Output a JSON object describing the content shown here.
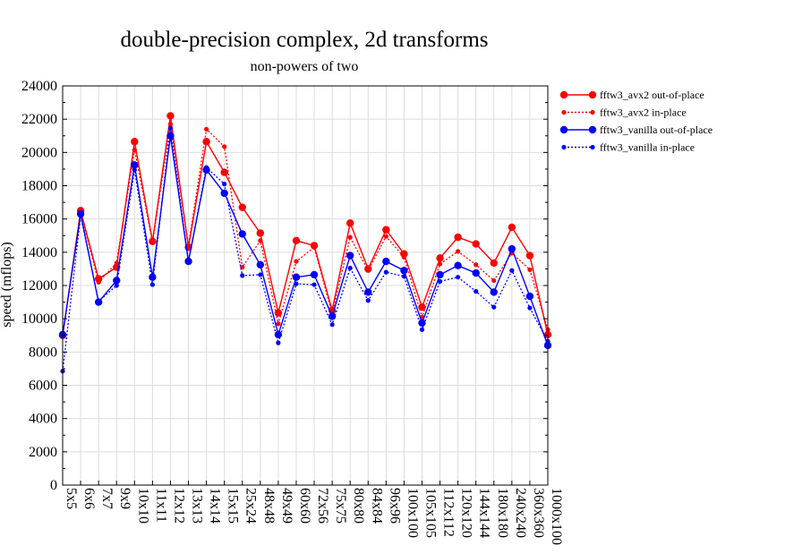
{
  "chart_data": {
    "type": "line",
    "title": "double-precision complex, 2d transforms",
    "subtitle": "non-powers of two",
    "xlabel": "",
    "ylabel": "speed (mflops)",
    "ylim": [
      0,
      24000
    ],
    "yticks": [
      0,
      2000,
      4000,
      6000,
      8000,
      10000,
      12000,
      14000,
      16000,
      18000,
      20000,
      22000,
      24000
    ],
    "grid": true,
    "legend_position": "top-right",
    "categories": [
      "5x5",
      "6x6",
      "7x7",
      "9x9",
      "10x10",
      "11x11",
      "12x12",
      "13x13",
      "14x14",
      "15x15",
      "25x24",
      "48x48",
      "49x49",
      "60x60",
      "72x56",
      "75x75",
      "80x80",
      "84x84",
      "96x96",
      "100x100",
      "105x105",
      "112x112",
      "120x120",
      "144x144",
      "180x180",
      "240x240",
      "360x360",
      "1000x100"
    ],
    "series": [
      {
        "name": "fftw3_avx2 out-of-place",
        "color": "#ff0000",
        "style": "solid",
        "marker": "large",
        "values": [
          9000,
          16500,
          12400,
          13100,
          20650,
          14650,
          22200,
          14300,
          20650,
          18800,
          16700,
          15150,
          10350,
          14700,
          14400,
          10500,
          15750,
          13000,
          15350,
          13900,
          10700,
          13650,
          14900,
          14500,
          13350,
          15500,
          13800,
          9050
        ]
      },
      {
        "name": "fftw3_avx2 in-place",
        "color": "#ff0000",
        "style": "dotted",
        "marker": "small",
        "values": [
          8950,
          16400,
          12200,
          13350,
          20150,
          14600,
          21700,
          14400,
          21400,
          20350,
          13100,
          14700,
          9700,
          13450,
          14300,
          10300,
          14900,
          12900,
          14950,
          13700,
          10100,
          13300,
          14050,
          13250,
          12300,
          13950,
          12950,
          9350
        ]
      },
      {
        "name": "fftw3_vanilla out-of-place",
        "color": "#0000ff",
        "style": "solid",
        "marker": "large",
        "values": [
          9050,
          16300,
          11000,
          12300,
          19250,
          12500,
          21000,
          13450,
          18950,
          17550,
          15100,
          13250,
          9050,
          12500,
          12650,
          10150,
          13800,
          11600,
          13450,
          12900,
          9750,
          12650,
          13200,
          12750,
          11600,
          14200,
          11350,
          8400
        ]
      },
      {
        "name": "fftw3_vanilla in-place",
        "color": "#0000ff",
        "style": "dotted",
        "marker": "small",
        "values": [
          6850,
          16200,
          11050,
          12000,
          18950,
          12050,
          21450,
          13450,
          19100,
          18100,
          12600,
          12650,
          8550,
          12100,
          12050,
          9650,
          13050,
          11100,
          12800,
          12550,
          9350,
          12250,
          12500,
          11650,
          10700,
          12900,
          10650,
          8650
        ]
      }
    ]
  }
}
